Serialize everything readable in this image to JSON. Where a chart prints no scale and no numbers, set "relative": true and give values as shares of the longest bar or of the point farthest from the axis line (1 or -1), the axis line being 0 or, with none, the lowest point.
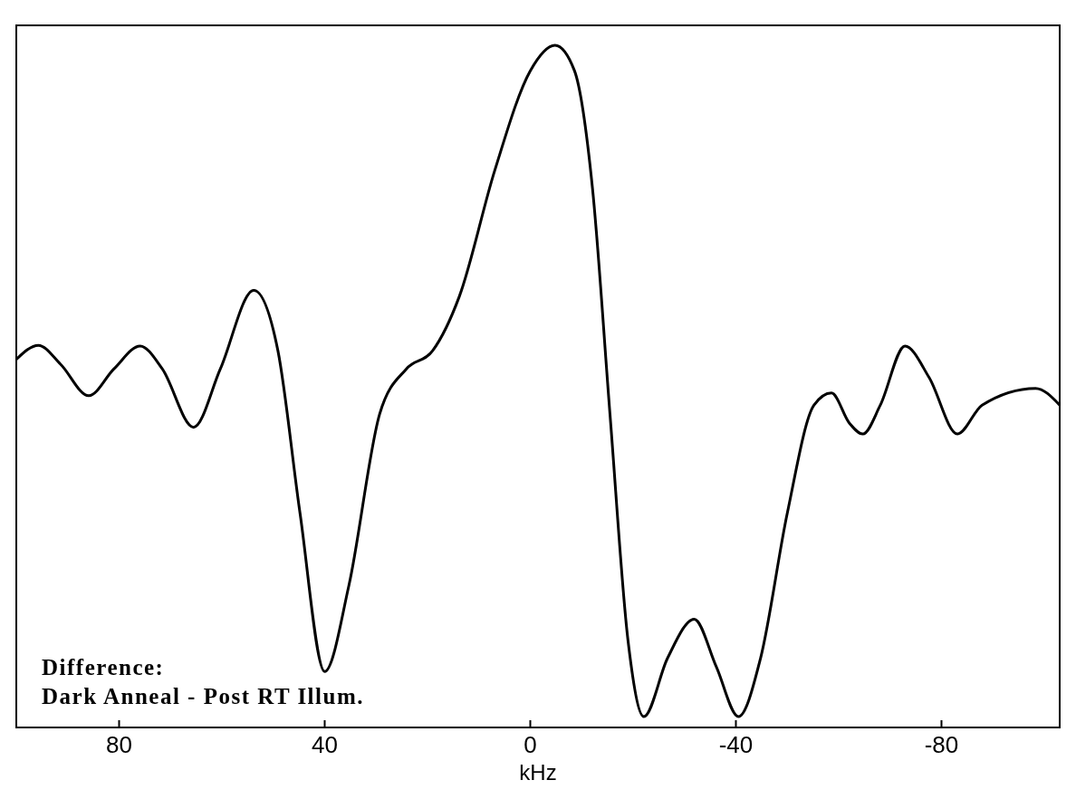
{
  "chart_data": {
    "type": "line",
    "relative": true,
    "xlabel": "kHz",
    "annotations": [
      "Difference:",
      "Dark Anneal - Post RT Illum."
    ],
    "xlim": [
      100,
      -103
    ],
    "xticks": [
      80,
      40,
      0,
      -40,
      -80
    ],
    "line_style": "solid",
    "series": [
      {
        "color": "#000000",
        "x": [
          100,
          95.7,
          91.4,
          85.9,
          81.0,
          75.9,
          71.6,
          65.5,
          60.3,
          53.8,
          49.1,
          44.8,
          40,
          35.3,
          29.3,
          24.1,
          19.0,
          13.8,
          6.9,
          0,
          -4.8,
          -8.6,
          -12.1,
          -15.5,
          -19.0,
          -22.1,
          -26.7,
          -31.9,
          -36.2,
          -40.5,
          -44.8,
          -50,
          -55.2,
          -58.6,
          -62.1,
          -64.7,
          -68.1,
          -72.9,
          -77.6,
          -83.1,
          -87.9,
          -98.3,
          -103
        ],
        "values": [
          0.532,
          0.553,
          0.525,
          0.478,
          0.518,
          0.552,
          0.518,
          0.431,
          0.518,
          0.635,
          0.545,
          0.303,
          0.067,
          0.195,
          0.451,
          0.518,
          0.545,
          0.626,
          0.814,
          0.962,
          1,
          0.962,
          0.787,
          0.451,
          0.114,
          0,
          0.087,
          0.145,
          0.074,
          0,
          0.087,
          0.303,
          0.464,
          0.482,
          0.437,
          0.421,
          0.464,
          0.552,
          0.505,
          0.421,
          0.464,
          0.489,
          0.464
        ]
      }
    ]
  }
}
